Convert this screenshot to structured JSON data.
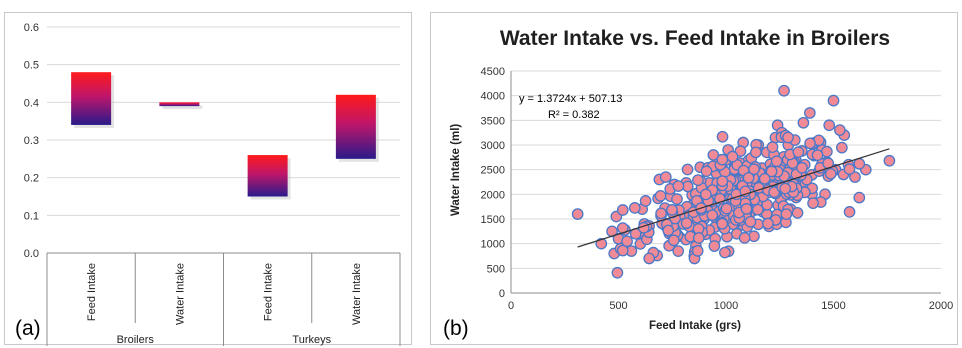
{
  "panel_labels": {
    "a": "(a)",
    "b": "(b)"
  },
  "chart_data": [
    {
      "type": "bar",
      "subtype": "floating-range",
      "title": "",
      "groups": [
        {
          "name": "Broilers",
          "categories": [
            {
              "name": "Feed Intake",
              "low": 0.34,
              "high": 0.48
            },
            {
              "name": "Water Intake",
              "low": 0.39,
              "high": 0.4
            }
          ]
        },
        {
          "name": "Turkeys",
          "categories": [
            {
              "name": "Feed Intake",
              "low": 0.15,
              "high": 0.26
            },
            {
              "name": "Water Intake",
              "low": 0.25,
              "high": 0.42
            }
          ]
        }
      ],
      "ylim": [
        0,
        0.6
      ],
      "yticks": [
        "0.0",
        "0.1",
        "0.2",
        "0.3",
        "0.4",
        "0.5",
        "0.6"
      ],
      "grid": true,
      "colors": {
        "top": "#ff1a1a",
        "middle": "#c0166a",
        "bottom": "#2a1a8a"
      }
    },
    {
      "type": "scatter",
      "title": "Water Intake vs. Feed Intake in Broilers",
      "xlabel": "Feed Intake (grs)",
      "ylabel": "Water Intake (ml)",
      "xlim": [
        0,
        2000
      ],
      "ylim": [
        0,
        4500
      ],
      "xticks": [
        "0",
        "500",
        "1000",
        "1500",
        "2000"
      ],
      "yticks": [
        "0",
        "500",
        "1000",
        "1500",
        "2000",
        "2500",
        "3000",
        "3500",
        "4000",
        "4500"
      ],
      "grid": true,
      "trendline": {
        "equation": "y = 1.3724x + 507.13",
        "r2": "R² = 0.382",
        "slope": 1.3724,
        "intercept": 507.13,
        "x_range": [
          310,
          1760
        ]
      },
      "point_count": 420,
      "x_mean": 1080,
      "x_sd": 220,
      "residual_sd": 400,
      "points": [
        [
          310,
          1600
        ],
        [
          420,
          1000
        ],
        [
          470,
          1250
        ],
        [
          480,
          800
        ],
        [
          490,
          1550
        ],
        [
          495,
          410
        ],
        [
          500,
          1100
        ],
        [
          510,
          900
        ],
        [
          530,
          1280
        ],
        [
          540,
          1050
        ],
        [
          560,
          850
        ],
        [
          580,
          1200
        ],
        [
          610,
          1700
        ],
        [
          620,
          1400
        ],
        [
          680,
          760
        ],
        [
          690,
          2300
        ],
        [
          720,
          2350
        ],
        [
          780,
          1150
        ],
        [
          860,
          950
        ],
        [
          880,
          2550
        ],
        [
          960,
          2700
        ],
        [
          1010,
          2900
        ],
        [
          1080,
          3050
        ],
        [
          1150,
          3000
        ],
        [
          1190,
          2850
        ],
        [
          1230,
          3150
        ],
        [
          1240,
          3400
        ],
        [
          1260,
          3250
        ],
        [
          1270,
          4100
        ],
        [
          1290,
          3000
        ],
        [
          1300,
          2700
        ],
        [
          1320,
          3100
        ],
        [
          1360,
          3450
        ],
        [
          1390,
          3650
        ],
        [
          1420,
          3050
        ],
        [
          1480,
          3400
        ],
        [
          1500,
          3900
        ],
        [
          1510,
          2500
        ],
        [
          1550,
          3200
        ],
        [
          1570,
          2600
        ],
        [
          1600,
          2350
        ],
        [
          1650,
          2500
        ],
        [
          1760,
          2680
        ],
        [
          1050,
          1200
        ],
        [
          1130,
          1150
        ],
        [
          1200,
          1350
        ],
        [
          950,
          1100
        ],
        [
          900,
          1250
        ],
        [
          1300,
          1700
        ],
        [
          1400,
          2000
        ],
        [
          760,
          2200
        ]
      ],
      "point_color": "#f08a96",
      "point_edge": "#4a78c8"
    }
  ]
}
